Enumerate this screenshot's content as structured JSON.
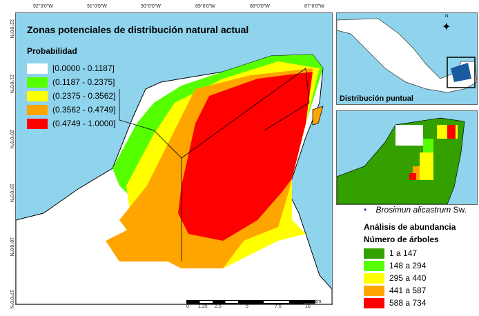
{
  "map": {
    "title": "Zonas potenciales de distribución natural actual",
    "legend_title": "Probabilidad",
    "legend": [
      {
        "label": "[0.0000 - 0.1187]",
        "color": "#ffffff"
      },
      {
        "label": "(0.1187 - 0.2375]",
        "color": "#55ff00"
      },
      {
        "label": "(0.2375 - 0.3562]",
        "color": "#ffff00"
      },
      {
        "label": "(0.3562 - 0.4749]",
        "color": "#ffa500"
      },
      {
        "label": "(0.4749 - 1.0000]",
        "color": "#ff0000"
      }
    ],
    "lon_ticks": [
      "92°0'0\"W",
      "91°0'0\"W",
      "90°0'0\"W",
      "89°0'0\"W",
      "88°0'0\"W",
      "87°0'0\"W"
    ],
    "lat_ticks": [
      "22°0'0\"N",
      "21°0'0\"N",
      "20°0'0\"N",
      "19°0'0\"N",
      "18°0'0\"N",
      "17°0'0\"N"
    ],
    "scale_labels": [
      "0",
      "1.25",
      "2.5",
      "5",
      "7.5",
      "10"
    ],
    "scale_unit": "km",
    "water_color": "#8fd3ec"
  },
  "inset": {
    "caption": "Distribución puntual",
    "species_marker": "•",
    "species": "Brosimun alicastrum",
    "species_author": "Sw.",
    "north_label": "N"
  },
  "abundance": {
    "title": "Análisis de abundancia",
    "subtitle": "Número de árboles",
    "legend": [
      {
        "label": "1 a 147",
        "color": "#33a000"
      },
      {
        "label": "148 a 294",
        "color": "#55ff00"
      },
      {
        "label": "295 a 440",
        "color": "#ffff00"
      },
      {
        "label": "441 a 587",
        "color": "#ffa500"
      },
      {
        "label": "588 a 734",
        "color": "#ff0000"
      }
    ]
  }
}
